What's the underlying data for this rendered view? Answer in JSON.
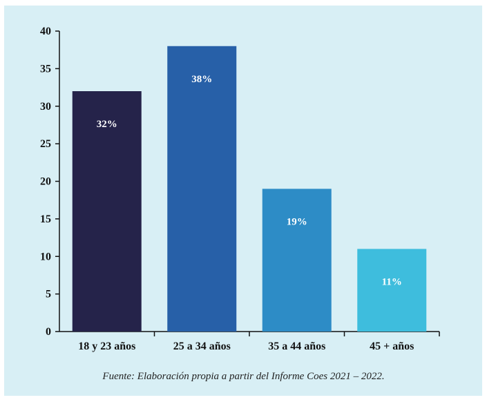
{
  "chart_data": {
    "type": "bar",
    "categories": [
      "18 y 23 años",
      "25 a 34 años",
      "35 a 44 años",
      "45 + años"
    ],
    "values": [
      32,
      38,
      19,
      11
    ],
    "data_labels": [
      "32%",
      "38%",
      "19%",
      "11%"
    ],
    "colors": [
      "#25234a",
      "#2760a8",
      "#2d8cc6",
      "#3ebddd"
    ],
    "ylim": [
      0,
      40
    ],
    "yticks": [
      0,
      5,
      10,
      15,
      20,
      25,
      30,
      35,
      40
    ],
    "grid": false,
    "title": "",
    "xlabel": "",
    "ylabel": ""
  },
  "source_note": "Fuente: Elaboración propia a partir del Informe Coes 2021 – 2022."
}
